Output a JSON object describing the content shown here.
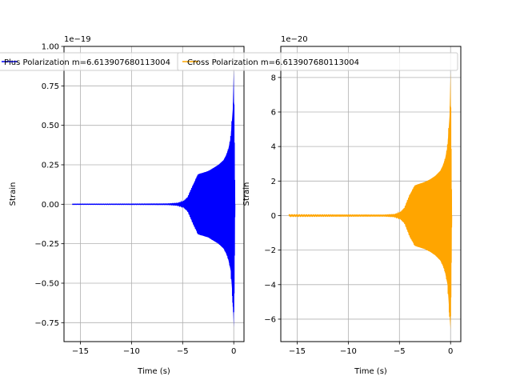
{
  "chart_data": [
    {
      "type": "line",
      "title": "",
      "xlabel": "Time (s)",
      "ylabel": "Strain",
      "offset_label": "1e−19",
      "xlim": [
        -16.6,
        1.0
      ],
      "ylim": [
        -0.87,
        1.0
      ],
      "xticks": [
        -15,
        -10,
        -5,
        0
      ],
      "yticks": [
        -0.75,
        -0.5,
        -0.25,
        0.0,
        0.25,
        0.5,
        0.75,
        1.0
      ],
      "xtick_labels": [
        "−15",
        "−10",
        "−5",
        "0"
      ],
      "ytick_labels": [
        "−0.75",
        "−0.50",
        "−0.25",
        "0.00",
        "0.25",
        "0.50",
        "0.75",
        "1.00"
      ],
      "grid": true,
      "legend_position": "top-center",
      "series": [
        {
          "name": "Plus Polarization m=6.613907680113004",
          "color": "#0000ff",
          "envelope": {
            "x": [
              -15.8,
              -6.5,
              -5.5,
              -5.0,
              -4.5,
              -4.0,
              -3.5,
              -3.0,
              -2.5,
              -2.0,
              -1.5,
              -1.0,
              -0.6,
              -0.3,
              -0.1,
              0.0,
              0.1
            ],
            "upper": [
              0.0,
              0.002,
              0.006,
              0.015,
              0.045,
              0.12,
              0.19,
              0.2,
              0.21,
              0.23,
              0.25,
              0.28,
              0.33,
              0.42,
              0.6,
              0.85,
              0.0
            ],
            "lower": [
              0.0,
              -0.002,
              -0.006,
              -0.015,
              -0.045,
              -0.12,
              -0.19,
              -0.2,
              -0.21,
              -0.23,
              -0.25,
              -0.28,
              -0.33,
              -0.42,
              -0.6,
              -0.78,
              0.0
            ]
          }
        }
      ]
    },
    {
      "type": "line",
      "title": "",
      "xlabel": "Time (s)",
      "ylabel": "Strain",
      "offset_label": "1e−20",
      "xlim": [
        -16.6,
        1.0
      ],
      "ylim": [
        -7.3,
        9.8
      ],
      "xticks": [
        -15,
        -10,
        -5,
        0
      ],
      "yticks": [
        -6,
        -4,
        -2,
        0,
        2,
        4,
        6,
        8
      ],
      "xtick_labels": [
        "−15",
        "−10",
        "−5",
        "0"
      ],
      "ytick_labels": [
        "−6",
        "−4",
        "−2",
        "0",
        "2",
        "4",
        "6",
        "8"
      ],
      "grid": true,
      "legend_position": "top-center",
      "series": [
        {
          "name": "Cross Polarization m=6.613907680113004",
          "color": "#ffa500",
          "envelope": {
            "x": [
              -15.8,
              -6.5,
              -5.5,
              -5.0,
              -4.5,
              -4.0,
              -3.5,
              -3.0,
              -2.5,
              -2.0,
              -1.5,
              -1.0,
              -0.6,
              -0.3,
              -0.1,
              0.0,
              0.1
            ],
            "upper": [
              0.05,
              0.03,
              0.06,
              0.15,
              0.45,
              1.2,
              1.75,
              1.85,
              1.95,
              2.1,
              2.3,
              2.6,
              3.1,
              4.0,
              5.8,
              8.3,
              0.0
            ],
            "lower": [
              -0.05,
              -0.03,
              -0.06,
              -0.15,
              -0.45,
              -1.2,
              -1.75,
              -1.85,
              -1.95,
              -2.1,
              -2.3,
              -2.6,
              -3.1,
              -4.0,
              -5.8,
              -6.6,
              0.0
            ]
          }
        }
      ]
    }
  ]
}
